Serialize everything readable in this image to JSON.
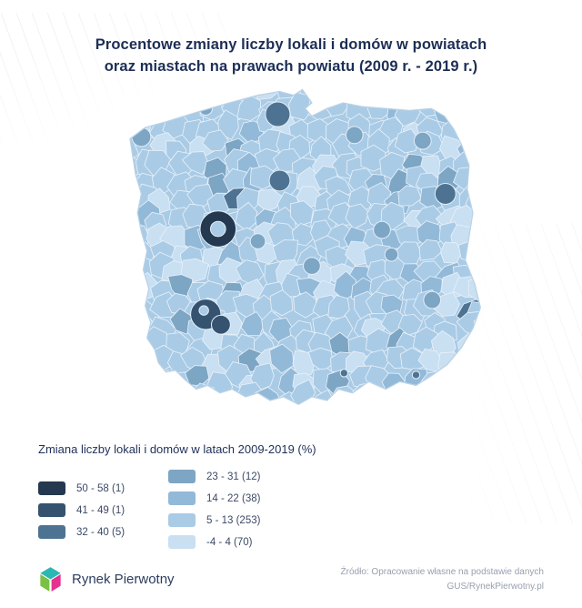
{
  "title": {
    "line1": "Procentowe zmiany liczby lokali i domów w powiatach",
    "line2": "oraz miastach na prawach powiatu (2009 r. - 2019 r.)"
  },
  "legend": {
    "title": "Zmiana liczby lokali i domów w latach 2009-2019 (%)",
    "items": [
      {
        "label": "50 - 58 (1)",
        "range": "50 - 58",
        "count": 1,
        "color": "#24384f"
      },
      {
        "label": "41 - 49 (1)",
        "range": "41 - 49",
        "count": 1,
        "color": "#35536f"
      },
      {
        "label": "32 - 40 (5)",
        "range": "32 - 40",
        "count": 5,
        "color": "#4e7392"
      },
      {
        "label": "23 - 31 (12)",
        "range": "23 - 31",
        "count": 12,
        "color": "#7da5c4"
      },
      {
        "label": "14 - 22 (38)",
        "range": "14 - 22",
        "count": 38,
        "color": "#92b9d8"
      },
      {
        "label": "5 - 13 (253)",
        "range": "5 - 13",
        "count": 253,
        "color": "#a9cbe6"
      },
      {
        "label": "-4 - 4 (70)",
        "range": "-4 - 4",
        "count": 70,
        "color": "#c9dff2"
      }
    ]
  },
  "chart_data": {
    "type": "heatmap",
    "subtype": "choropleth",
    "title": "Procentowe zmiany liczby lokali i domów w powiatach oraz miastach na prawach powiatu (2009 r. - 2019 r.)",
    "legend_title": "Zmiana liczby lokali i domów w latach 2009-2019 (%)",
    "unit": "%",
    "period": "2009-2019",
    "geography": "Polska — powiaty i miasta na prawach powiatu",
    "legend_position": "bottom-left",
    "bins": [
      {
        "range": "50 - 58",
        "count": 1,
        "color": "#24384f"
      },
      {
        "range": "41 - 49",
        "count": 1,
        "color": "#35536f"
      },
      {
        "range": "32 - 40",
        "count": 5,
        "color": "#4e7392"
      },
      {
        "range": "23 - 31",
        "count": 12,
        "color": "#7da5c4"
      },
      {
        "range": "14 - 22",
        "count": 38,
        "color": "#92b9d8"
      },
      {
        "range": "5 - 13",
        "count": 253,
        "color": "#a9cbe6"
      },
      {
        "range": "-4 - 4",
        "count": 70,
        "color": "#c9dff2"
      }
    ]
  },
  "footer": {
    "brand": "Rynek Pierwotny",
    "source_line1": "Źródło: Opracowanie własne na podstawie danych",
    "source_line2": "GUS/RynekPierwotny.pl",
    "logo_colors": {
      "top": "#2bb7b3",
      "left": "#7ac143",
      "right": "#e5318f"
    }
  }
}
